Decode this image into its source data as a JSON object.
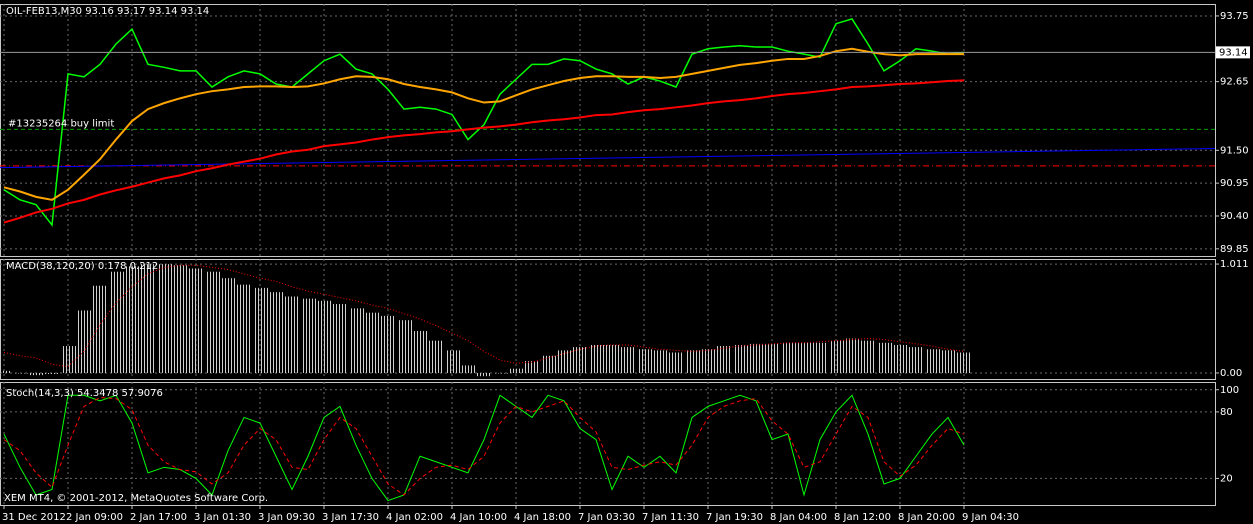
{
  "chart_data": [
    {
      "type": "line",
      "title": "OIL-FEB13,M30  93.16 93.17 93.14 93.14",
      "ylim": [
        89.73,
        93.95
      ],
      "yticks": [
        93.75,
        92.65,
        {
          "value": 91.5,
          "label": "91.50"
        },
        90.95,
        {
          "value": 90.4,
          "label": "90.40"
        },
        89.85
      ],
      "grid": true,
      "series": [
        {
          "color": "#00ff00",
          "values": [
            90.84,
            90.67,
            90.59,
            90.25,
            92.78,
            92.73,
            92.94,
            93.28,
            93.53,
            92.94,
            92.89,
            92.83,
            92.83,
            92.56,
            92.73,
            92.83,
            92.78,
            92.61,
            92.56,
            92.78,
            93.0,
            93.11,
            92.86,
            92.78,
            92.52,
            92.19,
            92.22,
            92.19,
            92.1,
            91.68,
            91.93,
            92.44,
            92.69,
            92.94,
            92.94,
            93.03,
            93.0,
            92.86,
            92.78,
            92.61,
            92.73,
            92.66,
            92.56,
            93.11,
            93.2,
            93.23,
            93.25,
            93.23,
            93.23,
            93.16,
            93.11,
            93.06,
            93.62,
            93.7,
            93.28,
            92.83,
            93.0,
            93.2,
            93.16,
            93.11,
            93.14
          ]
        },
        {
          "color": "#ffa500",
          "values": [
            90.88,
            90.81,
            90.72,
            90.67,
            90.84,
            91.09,
            91.35,
            91.68,
            91.99,
            92.19,
            92.29,
            92.37,
            92.44,
            92.49,
            92.52,
            92.56,
            92.57,
            92.57,
            92.56,
            92.57,
            92.62,
            92.69,
            92.74,
            92.73,
            92.69,
            92.61,
            92.56,
            92.52,
            92.47,
            92.37,
            92.3,
            92.32,
            92.42,
            92.52,
            92.59,
            92.66,
            92.71,
            92.74,
            92.74,
            92.73,
            92.73,
            92.71,
            92.73,
            92.78,
            92.83,
            92.88,
            92.93,
            92.96,
            93.0,
            93.03,
            93.03,
            93.08,
            93.16,
            93.2,
            93.15,
            93.11,
            93.09,
            93.11,
            93.11,
            93.11,
            93.11
          ]
        },
        {
          "color": "#ff0000",
          "values": [
            90.29,
            90.37,
            90.46,
            90.52,
            90.61,
            90.67,
            90.76,
            90.83,
            90.89,
            90.96,
            91.03,
            91.08,
            91.15,
            91.2,
            91.26,
            91.31,
            91.36,
            91.43,
            91.48,
            91.51,
            91.57,
            91.6,
            91.63,
            91.68,
            91.72,
            91.75,
            91.77,
            91.8,
            91.82,
            91.85,
            91.88,
            91.9,
            91.93,
            91.97,
            92.0,
            92.02,
            92.05,
            92.09,
            92.1,
            92.14,
            92.17,
            92.19,
            92.22,
            92.25,
            92.29,
            92.32,
            92.34,
            92.37,
            92.41,
            92.44,
            92.46,
            92.49,
            92.52,
            92.56,
            92.57,
            92.59,
            92.61,
            92.62,
            92.64,
            92.66,
            92.67
          ]
        }
      ],
      "bid": 93.14,
      "levels": [
        {
          "label": "#13235264 buy limit",
          "value": 91.85,
          "color": "#00a000",
          "style": "dashed"
        },
        {
          "value": 91.24,
          "color": "#ff0000",
          "style": "dashdot"
        }
      ],
      "trendline": {
        "values": [
          91.21,
          91.53
        ],
        "color": "#0000ff"
      }
    },
    {
      "type": "bar",
      "title": "MACD(38,120,20) 0.178 0.212",
      "ylim": [
        -0.056,
        1.058
      ],
      "yticks": [
        1.011,
        {
          "value": 0,
          "label": "0.00"
        }
      ],
      "series": [
        {
          "color": "#c0c0c0",
          "values": [
            0.02,
            0,
            -0.02,
            -0.01,
            0.25,
            0.58,
            0.81,
            0.94,
            0.99,
            1.01,
            1.01,
            1.0,
            0.97,
            0.94,
            0.88,
            0.82,
            0.79,
            0.75,
            0.71,
            0.69,
            0.67,
            0.64,
            0.6,
            0.56,
            0.53,
            0.49,
            0.39,
            0.3,
            0.21,
            0.07,
            -0.03,
            0,
            0.04,
            0.11,
            0.16,
            0.21,
            0.24,
            0.26,
            0.26,
            0.24,
            0.22,
            0.21,
            0.19,
            0.21,
            0.22,
            0.25,
            0.26,
            0.27,
            0.27,
            0.28,
            0.28,
            0.28,
            0.3,
            0.32,
            0.3,
            0.28,
            0.26,
            0.24,
            0.22,
            0.21,
            0.19
          ]
        },
        {
          "type": "line",
          "style": "dotted",
          "color": "#ff0000",
          "values": [
            0.19,
            0.16,
            0.14,
            0.08,
            0.06,
            0.2,
            0.45,
            0.65,
            0.8,
            0.92,
            0.98,
            1.0,
            1.0,
            0.98,
            0.96,
            0.92,
            0.88,
            0.85,
            0.8,
            0.76,
            0.73,
            0.7,
            0.67,
            0.63,
            0.6,
            0.55,
            0.5,
            0.44,
            0.37,
            0.3,
            0.2,
            0.12,
            0.09,
            0.1,
            0.14,
            0.18,
            0.22,
            0.25,
            0.26,
            0.26,
            0.24,
            0.22,
            0.21,
            0.2,
            0.21,
            0.23,
            0.25,
            0.26,
            0.27,
            0.28,
            0.28,
            0.29,
            0.3,
            0.31,
            0.32,
            0.31,
            0.29,
            0.27,
            0.25,
            0.22,
            0.2
          ]
        }
      ]
    },
    {
      "type": "line",
      "title": "Stoch(14,3,3) 54.3478 57.9076",
      "ylim": [
        -4,
        107
      ],
      "yticks": [
        100,
        80,
        20
      ],
      "categories": [
        "31 Dec 2012",
        null,
        null,
        null,
        "2 Jan 09:00",
        null,
        null,
        null,
        "2 Jan 17:00",
        null,
        null,
        null,
        "3 Jan 01:30",
        null,
        null,
        null,
        "3 Jan 09:30",
        null,
        null,
        null,
        "3 Jan 17:30",
        null,
        null,
        null,
        "4 Jan 02:00",
        null,
        null,
        null,
        "4 Jan 10:00",
        null,
        null,
        null,
        "4 Jan 18:00",
        null,
        null,
        null,
        "7 Jan 03:30",
        null,
        null,
        null,
        "7 Jan 11:30",
        null,
        null,
        null,
        "7 Jan 19:30",
        null,
        null,
        null,
        "8 Jan 04:00",
        null,
        null,
        null,
        "8 Jan 12:00",
        null,
        null,
        null,
        "8 Jan 20:00",
        null,
        null,
        null,
        "9 Jan 04:30"
      ],
      "series": [
        {
          "color": "#00ff00",
          "values": [
            60,
            30,
            5,
            10,
            95,
            95,
            90,
            95,
            70,
            25,
            30,
            28,
            20,
            5,
            45,
            75,
            70,
            40,
            10,
            40,
            75,
            85,
            50,
            20,
            0,
            5,
            40,
            35,
            30,
            25,
            55,
            95,
            85,
            75,
            95,
            90,
            65,
            55,
            10,
            40,
            30,
            40,
            25,
            75,
            85,
            90,
            95,
            90,
            55,
            60,
            5,
            55,
            80,
            95,
            60,
            15,
            20,
            40,
            60,
            75,
            50
          ]
        },
        {
          "style": "dashed",
          "color": "#ff0000",
          "values": [
            55,
            45,
            25,
            12,
            50,
            85,
            93,
            92,
            82,
            50,
            35,
            28,
            26,
            15,
            25,
            50,
            65,
            55,
            30,
            28,
            55,
            75,
            65,
            40,
            15,
            5,
            20,
            30,
            32,
            28,
            40,
            70,
            85,
            80,
            85,
            90,
            75,
            62,
            30,
            28,
            32,
            35,
            32,
            50,
            75,
            85,
            90,
            92,
            72,
            60,
            30,
            35,
            60,
            85,
            75,
            35,
            22,
            32,
            50,
            65,
            60
          ]
        }
      ]
    }
  ],
  "copyright": "XEM MT4, © 2001-2012, MetaQuotes Software Corp."
}
